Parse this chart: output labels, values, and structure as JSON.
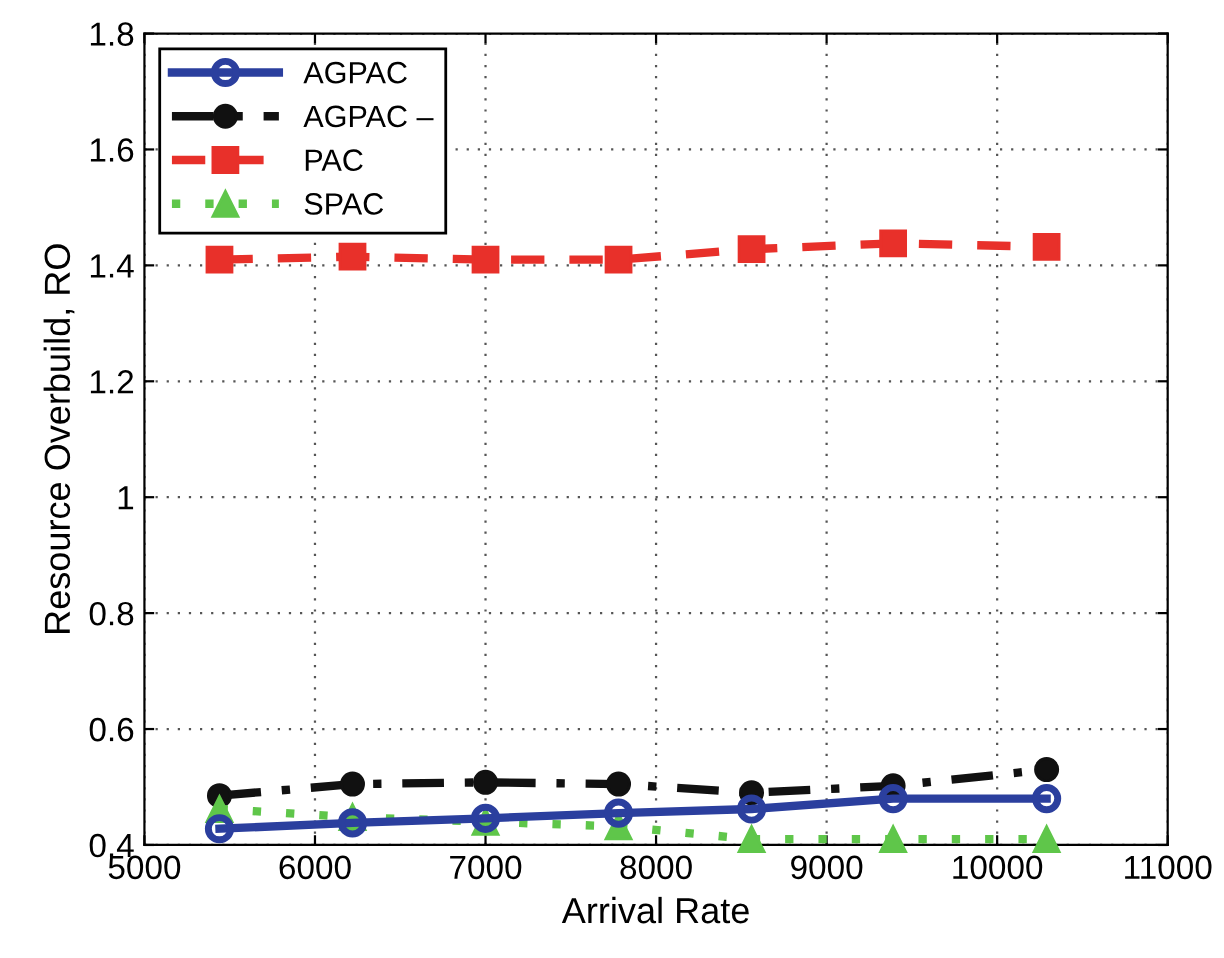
{
  "chart_data": {
    "type": "line",
    "xlabel": "Arrival Rate",
    "ylabel": "Resource Overbuild, RO",
    "x": [
      5440,
      6220,
      7000,
      7780,
      8560,
      9390,
      10290
    ],
    "xlim": [
      5000,
      11000
    ],
    "xticks": [
      5000,
      6000,
      7000,
      8000,
      9000,
      10000,
      11000
    ],
    "ylim": [
      0.4,
      1.8
    ],
    "yticks": [
      0.4,
      0.6,
      0.8,
      1,
      1.2,
      1.4,
      1.6,
      1.8
    ],
    "grid": true,
    "legend": "top left",
    "series": [
      {
        "name": "AGPAC",
        "color": "#2b3f9e",
        "marker": "circle",
        "line_style": "solid",
        "values": [
          0.428,
          0.438,
          0.446,
          0.455,
          0.462,
          0.48,
          0.48
        ]
      },
      {
        "name": "AGPAC –",
        "color": "#111111",
        "marker": "circle",
        "line_style": "dashdot",
        "values": [
          0.485,
          0.505,
          0.508,
          0.505,
          0.49,
          0.502,
          0.53
        ]
      },
      {
        "name": "PAC",
        "color": "#e8302a",
        "marker": "square",
        "line_style": "dashed",
        "values": [
          1.41,
          1.415,
          1.41,
          1.41,
          1.428,
          1.438,
          1.432
        ]
      },
      {
        "name": "SPAC",
        "color": "#5fc64a",
        "marker": "triangle",
        "line_style": "dotted",
        "values": [
          0.462,
          0.448,
          0.44,
          0.432,
          0.41,
          0.41,
          0.41
        ]
      }
    ]
  }
}
